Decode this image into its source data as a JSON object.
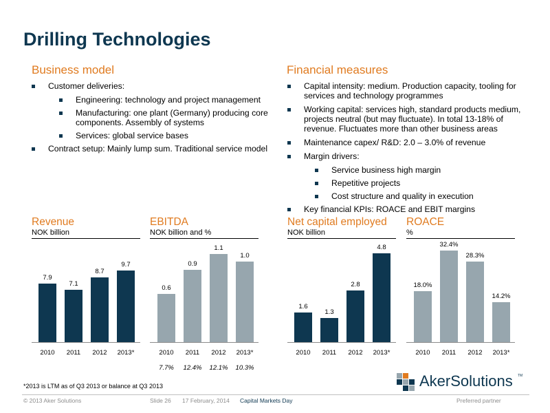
{
  "title": "Drilling Technologies",
  "business_model": {
    "heading": "Business model",
    "items": [
      {
        "text": "Customer deliveries:",
        "sub": [
          "Engineering: technology and project management",
          "Manufacturing: one plant (Germany) producing core components. Assembly of systems",
          "Services: global service bases"
        ]
      },
      {
        "text": "Contract setup: Mainly lump sum. Traditional service model",
        "sub": []
      }
    ]
  },
  "financial_measures": {
    "heading": "Financial measures",
    "items": [
      {
        "text": "Capital intensity: medium. Production capacity, tooling for services and technology programmes",
        "sub": []
      },
      {
        "text": "Working capital: services high, standard products medium, projects neutral (but may fluctuate). In total 13-18% of revenue. Fluctuates more than other business areas",
        "sub": []
      },
      {
        "text": "Maintenance capex/ R&D: 2.0 – 3.0% of revenue",
        "sub": []
      },
      {
        "text": "Margin drivers:",
        "sub": [
          "Service business high margin",
          "Repetitive projects",
          "Cost structure and quality in execution"
        ]
      },
      {
        "text": "Key financial KPIs: ROACE and EBIT margins",
        "sub": []
      }
    ]
  },
  "chart_data": [
    {
      "type": "bar",
      "title": "Revenue",
      "unit": "NOK billion",
      "categories": [
        "2010",
        "2011",
        "2012",
        "2013*"
      ],
      "values": [
        7.9,
        7.1,
        8.7,
        9.7
      ],
      "labels": [
        "7.9",
        "7.1",
        "8.7",
        "9.7"
      ],
      "ylim": [
        0,
        13
      ],
      "color": "#0e3750"
    },
    {
      "type": "bar",
      "title": "EBITDA",
      "unit": "NOK billion and %",
      "categories": [
        "2010",
        "2011",
        "2012",
        "2013*"
      ],
      "values": [
        0.6,
        0.9,
        1.1,
        1.0
      ],
      "labels": [
        "0.6",
        "0.9",
        "1.1",
        "1.0"
      ],
      "margins": [
        "7.7%",
        "12.4%",
        "12.1%",
        "10.3%"
      ],
      "ylim": [
        0,
        1.2
      ],
      "color": "#97a6ae"
    },
    {
      "type": "bar",
      "title": "Net capital employed",
      "unit": "NOK billion",
      "categories": [
        "2010",
        "2011",
        "2012",
        "2013*"
      ],
      "values": [
        1.6,
        1.3,
        2.8,
        4.8
      ],
      "labels": [
        "1.6",
        "1.3",
        "2.8",
        "4.8"
      ],
      "ylim": [
        0,
        5.2
      ],
      "color": "#0e3750"
    },
    {
      "type": "bar",
      "title": "ROACE",
      "unit": "%",
      "categories": [
        "2010",
        "2011",
        "2012",
        "2013*"
      ],
      "values": [
        18.0,
        32.4,
        28.3,
        14.2
      ],
      "labels": [
        "18.0%",
        "32.4%",
        "28.3%",
        "14.2%"
      ],
      "ylim": [
        0,
        34
      ],
      "color": "#97a6ae"
    }
  ],
  "footnote": "*2013 is LTM as of Q3 2013 or balance at Q3 2013",
  "footer": {
    "copyright": "© 2013 Aker Solutions",
    "slide": "Slide 26",
    "date": "17 February, 2014",
    "event": "Capital Markets Day",
    "tagline": "Preferred partner"
  },
  "logo": {
    "text": "AkerSolutions",
    "tm": "TM"
  },
  "colors": {
    "navy": "#0e3750",
    "orange": "#e07b20",
    "grey": "#97a6ae"
  }
}
